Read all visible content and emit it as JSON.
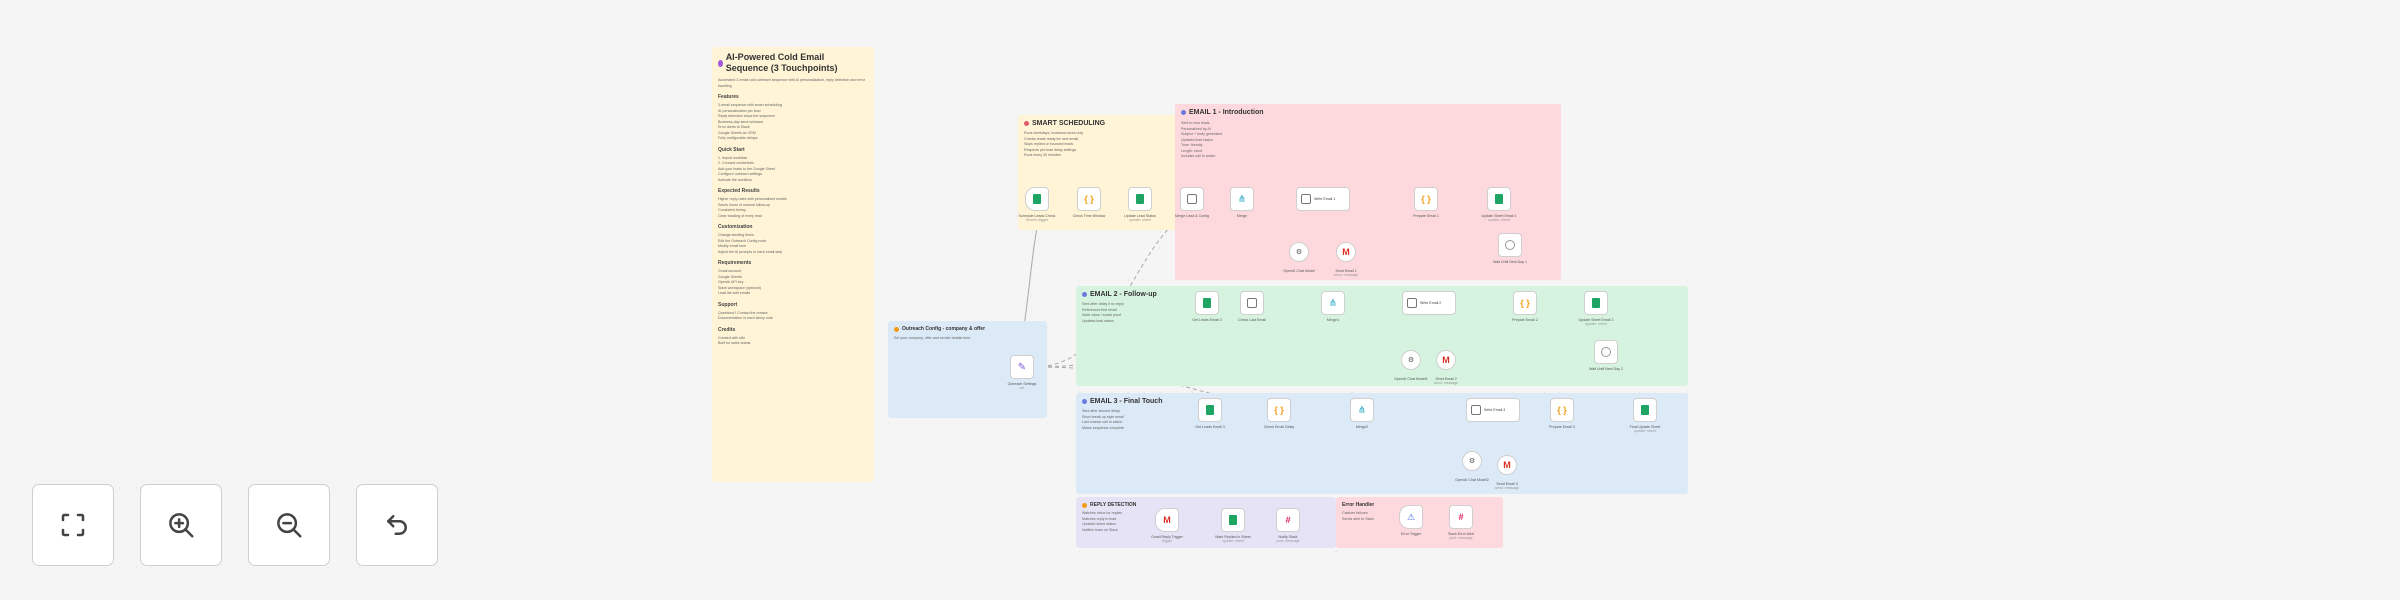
{
  "canvas": {
    "notes": {
      "main": {
        "title": "AI-Powered Cold Email Sequence (3 Touchpoints)",
        "intro": "Automated 3-email cold outreach sequence with AI personalization, reply detection and error handling",
        "sections": [
          {
            "heading": "Features",
            "lines": [
              "3-email sequence with smart scheduling",
              "AI personalization per lead",
              "Reply detection stops the sequence",
              "Business-day send windows",
              "Error alerts to Slack",
              "Google Sheets as CRM",
              "Fully configurable delays"
            ]
          },
          {
            "heading": "Quick Start",
            "lines": [
              "1. Import workflow",
              "2. Connect credentials",
              "Add your leads to the Google Sheet",
              "Configure outreach settings",
              "Activate the workflow"
            ]
          },
          {
            "heading": "Expected Results",
            "lines": [
              "Higher reply rates with personalized emails",
              "Saves hours of manual follow-up",
              "Consistent timing",
              "Clear tracking of every lead"
            ]
          },
          {
            "heading": "Customization",
            "lines": [
              "Change sending times",
              "Edit the Outreach Config node",
              "Modify email tone",
              "Adjust the AI prompts in each email step"
            ]
          },
          {
            "heading": "Requirements",
            "lines": [
              "Gmail account",
              "Google Sheets",
              "OpenAI API key",
              "Slack workspace (optional)",
              "Lead list with emails"
            ]
          },
          {
            "heading": "Support",
            "lines": [
              "Questions? Contact the creator",
              "Documentation in each sticky note"
            ]
          },
          {
            "heading": "Credits",
            "lines": [
              "Created with n8n",
              "Built for sales teams"
            ]
          }
        ]
      },
      "scheduling": {
        "title": "SMART SCHEDULING",
        "lines": [
          "Runs weekdays, business hours only",
          "Checks leads ready for next email",
          "Skips replied or bounced leads",
          "Respects per-lead delay settings",
          "Runs every 30 minutes"
        ]
      },
      "email1": {
        "title": "EMAIL 1 - Introduction",
        "lines": [
          "Sent to new leads",
          "Personalized by AI",
          "Subject + body generated",
          "Updates lead status",
          "Tone: friendly",
          "Length: short",
          "Includes call to action"
        ]
      },
      "email2": {
        "title": "EMAIL 2 - Follow-up",
        "lines": [
          "Sent after delay if no reply",
          "References first email",
          "Adds value / social proof",
          "Updates lead status"
        ]
      },
      "config": {
        "title": "Outreach Config - company & offer",
        "lines": [
          "Set your company, offer and sender details here"
        ]
      },
      "email3": {
        "title": "EMAIL 3 - Final Touch",
        "lines": [
          "Sent after second delay",
          "Short break-up style email",
          "Last chance call to action",
          "Marks sequence complete"
        ]
      },
      "reply": {
        "title": "REPLY DETECTION",
        "lines": [
          "Watches inbox for replies",
          "Matches reply to lead",
          "Updates sheet status",
          "Notifies team on Slack"
        ]
      },
      "error": {
        "title": "Error Handler",
        "lines": [
          "Catches failures",
          "Sends alert to Slack"
        ]
      }
    },
    "nodes": [
      {
        "label": "Schedule Leads Check",
        "sub": "Sheets trigger"
      },
      {
        "label": "Check Time Window",
        "sub": ""
      },
      {
        "label": "Update Lead Status",
        "sub": "update: sheet"
      },
      {
        "label": "Merge Lead & Config",
        "sub": ""
      },
      {
        "label": "Merge",
        "sub": ""
      },
      {
        "label": "Write Email 1",
        "sub": ""
      },
      {
        "label": "Prepare Email 1",
        "sub": ""
      },
      {
        "label": "Update Sheet Email 1",
        "sub": "update: sheet"
      },
      {
        "label": "OpenAI Chat Model",
        "sub": ""
      },
      {
        "label": "Send Email 1",
        "sub": "send: message"
      },
      {
        "label": "Wait Until Next Day 1",
        "sub": ""
      },
      {
        "label": "Get Leads Email 2",
        "sub": ""
      },
      {
        "label": "Check Last Email",
        "sub": ""
      },
      {
        "label": "Merge1",
        "sub": ""
      },
      {
        "label": "Write Email 2",
        "sub": ""
      },
      {
        "label": "Prepare Email 2",
        "sub": ""
      },
      {
        "label": "Update Sheet Email 2",
        "sub": "update: sheet"
      },
      {
        "label": "OpenAI Chat Model1",
        "sub": ""
      },
      {
        "label": "Send Email 2",
        "sub": "send: message"
      },
      {
        "label": "Wait Until Next Day 2",
        "sub": ""
      },
      {
        "label": "Get Leads Email 3",
        "sub": ""
      },
      {
        "label": "Check Email Delay",
        "sub": ""
      },
      {
        "label": "Merge2",
        "sub": ""
      },
      {
        "label": "Write Email 3",
        "sub": ""
      },
      {
        "label": "Prepare Email 3",
        "sub": ""
      },
      {
        "label": "Final Update Sheet",
        "sub": "update: sheet"
      },
      {
        "label": "OpenAI Chat Model2",
        "sub": ""
      },
      {
        "label": "Send Email 3",
        "sub": "send: message"
      },
      {
        "label": "Outreach Settings",
        "sub": "set"
      },
      {
        "label": "Gmail Reply Trigger",
        "sub": "trigger"
      },
      {
        "label": "Mark Replied in Sheet",
        "sub": "update: sheet"
      },
      {
        "label": "Notify Slack",
        "sub": "post: message"
      },
      {
        "label": "Error Trigger",
        "sub": ""
      },
      {
        "label": "Slack Error Alert",
        "sub": "post: message"
      }
    ]
  },
  "controls": [
    {
      "name": "fit-view",
      "icon": "fit-to-view-icon"
    },
    {
      "name": "zoom-in",
      "icon": "zoom-in-icon"
    },
    {
      "name": "zoom-out",
      "icon": "zoom-out-icon"
    },
    {
      "name": "undo",
      "icon": "undo-icon"
    }
  ],
  "colors": {
    "sticky_yellow": "#fff4d6",
    "sticky_pink": "#fdd9dd",
    "sticky_green": "#d6f3df",
    "sticky_blue": "#dce9f7",
    "sticky_purple": "#e6e3f6",
    "sheets_green": "#1fa463"
  }
}
